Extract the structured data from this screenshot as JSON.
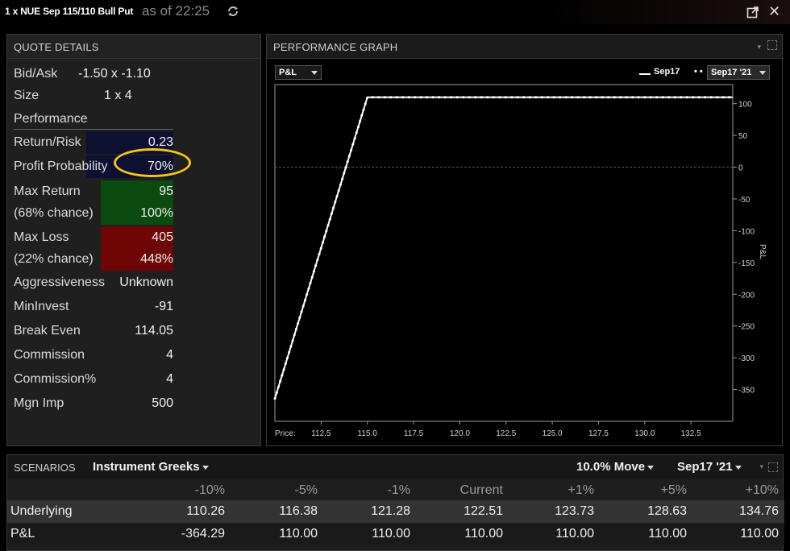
{
  "window": {
    "title": "1 x NUE Sep 115/110 Bull Put",
    "as_of": "as of 22:25"
  },
  "quote_details": {
    "title": "QUOTE DETAILS",
    "bid_ask_label": "Bid/Ask",
    "bid_ask_value": "-1.50 x -1.10",
    "size_label": "Size",
    "size_value": "1 x 4",
    "performance_label": "Performance",
    "return_risk_label": "Return/Risk",
    "return_risk_value": "0.23",
    "profit_prob_label": "Profit Probability",
    "profit_prob_value": "70%",
    "max_return_label": "Max Return",
    "max_return_value": "95",
    "max_return_chance_label": "(68% chance)",
    "max_return_pct": "100%",
    "max_loss_label": "Max Loss",
    "max_loss_value": "405",
    "max_loss_chance_label": "(22% chance)",
    "max_loss_pct": "448%",
    "aggressiveness_label": "Aggressiveness",
    "aggressiveness_value": "Unknown",
    "mininvest_label": "MinInvest",
    "mininvest_value": "-91",
    "break_even_label": "Break Even",
    "break_even_value": "114.05",
    "commission_label": "Commission",
    "commission_value": "4",
    "commission_pct_label": "Commission%",
    "commission_pct_value": "4",
    "mgn_imp_label": "Mgn Imp",
    "mgn_imp_value": "500",
    "colors": {
      "return_risk_bg": "#0d1030",
      "profit_prob_bg": "#0d1030",
      "max_return_bg": "#0b4a10",
      "max_loss_bg": "#6e0606",
      "highlight": "#f5c518"
    }
  },
  "performance_graph": {
    "title": "PERFORMANCE GRAPH",
    "metric_dropdown": "P&L",
    "legend_series": "Sep17",
    "expiry_dropdown": "Sep17 '21",
    "price_label": "Price:",
    "chart_data": {
      "type": "line",
      "xlabel": "Price:",
      "ylabel": "P&L",
      "x_ticks": [
        "112.5",
        "115.0",
        "117.5",
        "120.0",
        "122.5",
        "125.0",
        "127.5",
        "130.0",
        "132.5"
      ],
      "y_ticks": [
        "100",
        "50",
        "0",
        "-50",
        "-100",
        "-150",
        "-200",
        "-250",
        "-300",
        "-350"
      ],
      "xlim": [
        110.0,
        134.76
      ],
      "ylim": [
        -400,
        130
      ],
      "series": [
        {
          "name": "Sep17",
          "style": "solid",
          "x": [
            110.0,
            115.0,
            134.76
          ],
          "y": [
            -364.29,
            110.0,
            110.0
          ]
        },
        {
          "name": "Sep17 '21",
          "style": "dotted",
          "x": [
            110.0,
            115.0,
            134.76
          ],
          "y": [
            -364.29,
            110.0,
            110.0
          ]
        }
      ],
      "grid": false,
      "zero_line": true,
      "legend_position": "top-right"
    }
  },
  "scenarios": {
    "title": "SCENARIOS",
    "view_dropdown": "Instrument Greeks",
    "move_dropdown": "10.0% Move",
    "expiry_dropdown": "Sep17 '21",
    "columns": [
      "-10%",
      "-5%",
      "-1%",
      "Current",
      "+1%",
      "+5%",
      "+10%"
    ],
    "rows": [
      {
        "label": "Underlying",
        "values": [
          "110.26",
          "116.38",
          "121.28",
          "122.51",
          "123.73",
          "128.63",
          "134.76"
        ]
      },
      {
        "label": "P&L",
        "values": [
          "-364.29",
          "110.00",
          "110.00",
          "110.00",
          "110.00",
          "110.00",
          "110.00"
        ]
      }
    ]
  }
}
